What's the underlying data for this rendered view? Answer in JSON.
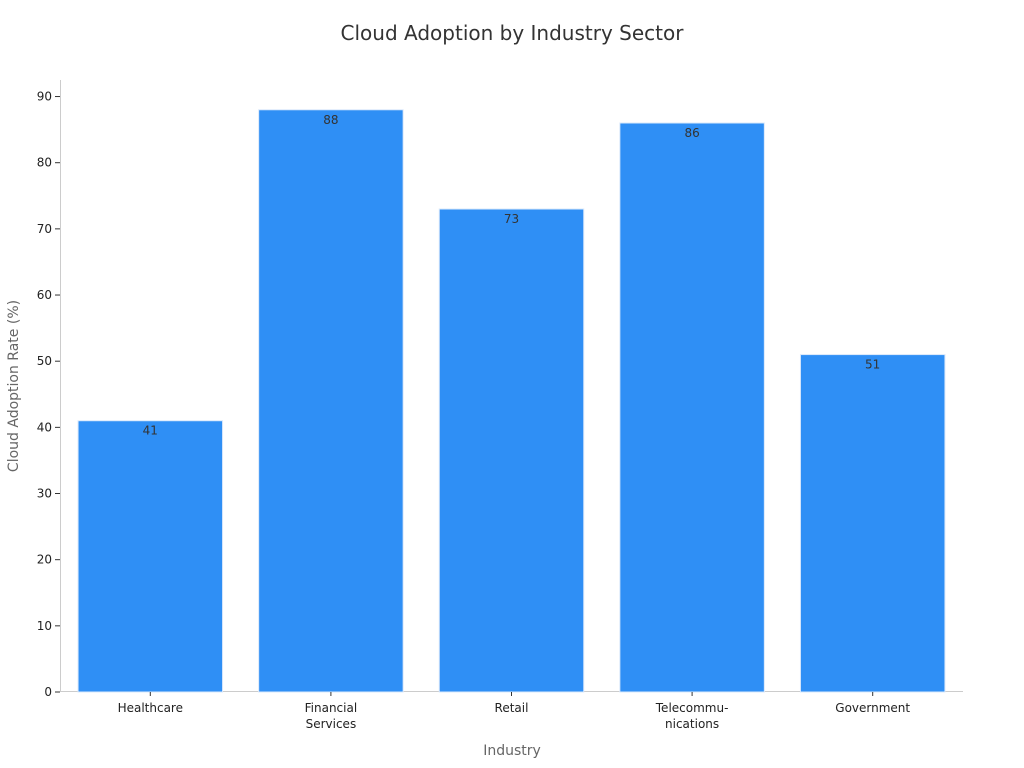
{
  "chart_data": {
    "type": "bar",
    "title": "Cloud Adoption by Industry Sector",
    "xlabel": "Industry",
    "ylabel": "Cloud Adoption Rate (%)",
    "categories": [
      [
        "Healthcare"
      ],
      [
        "Financial",
        "Services"
      ],
      [
        "Retail"
      ],
      [
        "Telecommu-",
        "nications"
      ],
      [
        "Government"
      ]
    ],
    "values": [
      41,
      88,
      73,
      86,
      51
    ],
    "data_labels": [
      "41",
      "88",
      "73",
      "86",
      "51"
    ],
    "ylim": [
      0,
      92.5
    ],
    "yticks": [
      0,
      10,
      20,
      30,
      40,
      50,
      60,
      70,
      80,
      90
    ],
    "bar_color": "#2f8ff5",
    "grid": false,
    "legend": "none"
  }
}
